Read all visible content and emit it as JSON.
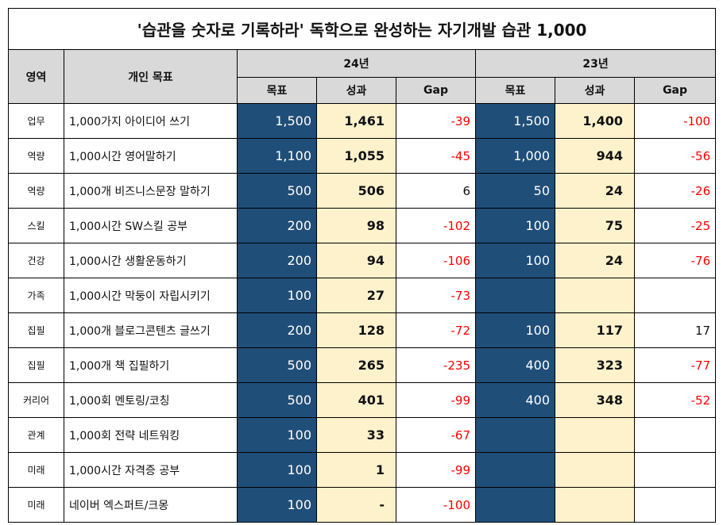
{
  "title": "'습관을 숫자로 기록하라'    독학으로 완성하는 자기개발 습관 1,000",
  "headers": {
    "area": "영역",
    "goal": "개인 목표",
    "year_24": "24년",
    "year_23": "23년",
    "target": "목표",
    "result": "성과",
    "gap": "Gap"
  },
  "colors": {
    "header_bg": "#d9d9d9",
    "target_bg": "#1f4e79",
    "result_bg": "#fdf2cc",
    "negative_text": "#ff0000"
  },
  "rows": [
    {
      "area": "업무",
      "goal": "1,000가지 아이디어 쓰기",
      "t24": "1,500",
      "r24": "1,461",
      "g24": "-39",
      "t23": "1,500",
      "r23": "1,400",
      "g23": "-100"
    },
    {
      "area": "역량",
      "goal": "1,000시간 영어말하기",
      "t24": "1,100",
      "r24": "1,055",
      "g24": "-45",
      "t23": "1,000",
      "r23": "944",
      "g23": "-56"
    },
    {
      "area": "역량",
      "goal": "1,000개 비즈니스문장 말하기",
      "t24": "500",
      "r24": "506",
      "g24": "6",
      "t23": "50",
      "r23": "24",
      "g23": "-26"
    },
    {
      "area": "스킬",
      "goal": "1,000시간 SW스킬 공부",
      "t24": "200",
      "r24": "98",
      "g24": "-102",
      "t23": "100",
      "r23": "75",
      "g23": "-25"
    },
    {
      "area": "건강",
      "goal": "1,000시간 생활운동하기",
      "t24": "200",
      "r24": "94",
      "g24": "-106",
      "t23": "100",
      "r23": "24",
      "g23": "-76"
    },
    {
      "area": "가족",
      "goal": "1,000시간 막둥이 자립시키기",
      "t24": "100",
      "r24": "27",
      "g24": "-73",
      "t23": "",
      "r23": "",
      "g23": ""
    },
    {
      "area": "집필",
      "goal": "1,000개 블로그콘텐츠 글쓰기",
      "t24": "200",
      "r24": "128",
      "g24": "-72",
      "t23": "100",
      "r23": "117",
      "g23": "17"
    },
    {
      "area": "집필",
      "goal": "1,000개 책 집필하기",
      "t24": "500",
      "r24": "265",
      "g24": "-235",
      "t23": "400",
      "r23": "323",
      "g23": "-77"
    },
    {
      "area": "커리어",
      "goal": "1,000회 멘토링/코칭",
      "t24": "500",
      "r24": "401",
      "g24": "-99",
      "t23": "400",
      "r23": "348",
      "g23": "-52"
    },
    {
      "area": "관계",
      "goal": "1,000회 전략 네트워킹",
      "t24": "100",
      "r24": "33",
      "g24": "-67",
      "t23": "",
      "r23": "",
      "g23": ""
    },
    {
      "area": "미래",
      "goal": "1,000시간 자격증 공부",
      "t24": "100",
      "r24": "1",
      "g24": "-99",
      "t23": "",
      "r23": "",
      "g23": ""
    },
    {
      "area": "미래",
      "goal": "네이버 엑스퍼트/크몽",
      "t24": "100",
      "r24": "-",
      "g24": "-100",
      "t23": "",
      "r23": "",
      "g23": ""
    }
  ]
}
